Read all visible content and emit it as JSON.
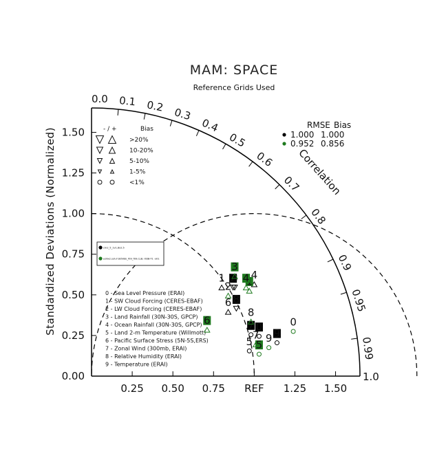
{
  "title": "MAM: SPACE",
  "subtitle": "Reference Grids Used",
  "colors": {
    "black": "#000000",
    "green": "#1e7a1e"
  },
  "chart_data": {
    "type": "taylor",
    "ylabel": "Standardized Deviations (Normalized)",
    "arc_label": "Correlation",
    "ref_label": "REF",
    "x_ticks": [
      "0.25",
      "0.50",
      "0.75",
      "1.00",
      "1.25",
      "1.50"
    ],
    "x_tick_values": [
      0.25,
      0.5,
      0.75,
      1.0,
      1.25,
      1.5
    ],
    "y_ticks": [
      "0.00",
      "0.25",
      "0.50",
      "0.75",
      "1.00",
      "1.25",
      "1.50"
    ],
    "y_tick_values": [
      0,
      0.25,
      0.5,
      0.75,
      1.0,
      1.25,
      1.5
    ],
    "corr_ticks": [
      {
        "label": "0.0",
        "value": 0.0
      },
      {
        "label": "0.1",
        "value": 0.1
      },
      {
        "label": "0.2",
        "value": 0.2
      },
      {
        "label": "0.3",
        "value": 0.3
      },
      {
        "label": "0.4",
        "value": 0.4
      },
      {
        "label": "0.5",
        "value": 0.5
      },
      {
        "label": "0.6",
        "value": 0.6
      },
      {
        "label": "0.7",
        "value": 0.7
      },
      {
        "label": "0.8",
        "value": 0.8
      },
      {
        "label": "0.9",
        "value": 0.9
      },
      {
        "label": "0.95",
        "value": 0.95
      },
      {
        "label": "0.99",
        "value": 0.99
      },
      {
        "label": "1.0",
        "value": 1.0
      }
    ],
    "std_max": 1.65,
    "bias_legend": {
      "header": [
        "- / +",
        "Bias"
      ],
      "rows": [
        ">20%",
        "10-20%",
        "5-10%",
        "1-5%",
        "<1%"
      ]
    },
    "rmse_table": {
      "header": [
        "RMSE",
        "Bias"
      ],
      "rows": [
        {
          "color": "#000000",
          "rmse": "1.000",
          "bias": "1.000"
        },
        {
          "color": "#1e7a1e",
          "rmse": "0.952",
          "bias": "0.856"
        }
      ]
    },
    "case_box": [
      {
        "color": "#000000",
        "label": "cm2_5_1v1.8x2.5"
      },
      {
        "color": "#1e7a1e",
        "label": "a16x2.ssh.F1850EE_f09_f09.CLB.-ODB-T1 -x01"
      }
    ],
    "variables": [
      "0 - Sea Level Pressure (ERAI)",
      "1 - SW Cloud Forcing (CERES-EBAF)",
      "2 - LW Cloud Forcing (CERES-EBAF)",
      "3 - Land Rainfall (30N-30S, GPCP)",
      "4 - Ocean Rainfall (30N-30S, GPCP)",
      "5 - Land 2-m Temperature (Willmott)",
      "6 - Pacific Surface Stress (5N-5S,ERS)",
      "7 - Zonal Wind (300mb, ERAI)",
      "8 - Relative Humidity (ERAI)",
      "9 - Temperature (ERAI)"
    ],
    "series": [
      {
        "name": "case1",
        "color": "#000000",
        "points": [
          {
            "id": "0",
            "x": 1.03,
            "y": 0.3,
            "style": "box",
            "sym": "circle"
          },
          {
            "id": "1",
            "x": 0.8,
            "y": 0.6,
            "style": "text",
            "sym": "up"
          },
          {
            "id": "2",
            "x": 0.87,
            "y": 0.6,
            "style": "box",
            "sym": "down"
          },
          {
            "id": "3",
            "x": 0.88,
            "y": 0.6,
            "style": "text",
            "sym": "down"
          },
          {
            "id": "4",
            "x": 1.0,
            "y": 0.62,
            "style": "text",
            "sym": "up"
          },
          {
            "id": "5",
            "x": 0.97,
            "y": 0.21,
            "style": "text",
            "sym": "circle"
          },
          {
            "id": "6",
            "x": 0.84,
            "y": 0.45,
            "style": "text",
            "sym": "up"
          },
          {
            "id": "7",
            "x": 0.98,
            "y": 0.31,
            "style": "box",
            "sym": "circle"
          },
          {
            "id": "8",
            "x": 0.89,
            "y": 0.47,
            "style": "box",
            "sym": "down"
          },
          {
            "id": "9",
            "x": 1.14,
            "y": 0.26,
            "style": "box",
            "sym": "circle"
          }
        ]
      },
      {
        "name": "case2",
        "color": "#1e7a1e",
        "points": [
          {
            "id": "0",
            "x": 1.24,
            "y": 0.33,
            "style": "text",
            "sym": "circle"
          },
          {
            "id": "1",
            "x": 0.97,
            "y": 0.58,
            "style": "box",
            "sym": "up"
          },
          {
            "id": "2",
            "x": 0.84,
            "y": 0.55,
            "style": "text",
            "sym": "up"
          },
          {
            "id": "3",
            "x": 0.88,
            "y": 0.67,
            "style": "box",
            "sym": "up"
          },
          {
            "id": "4",
            "x": 0.95,
            "y": 0.6,
            "style": "box",
            "sym": "up"
          },
          {
            "id": "5",
            "x": 1.03,
            "y": 0.19,
            "style": "box",
            "sym": "circle"
          },
          {
            "id": "6",
            "x": 0.71,
            "y": 0.34,
            "style": "box",
            "sym": "up"
          },
          {
            "id": "7",
            "x": 1.01,
            "y": 0.25,
            "style": "text",
            "sym": "up"
          },
          {
            "id": "8",
            "x": 0.98,
            "y": 0.39,
            "style": "text",
            "sym": "up"
          },
          {
            "id": "9",
            "x": 1.09,
            "y": 0.23,
            "style": "text",
            "sym": "circle"
          }
        ]
      }
    ]
  }
}
